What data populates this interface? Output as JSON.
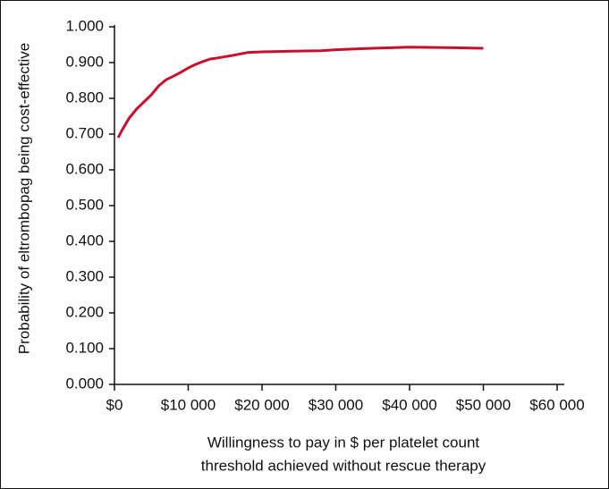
{
  "chart_data": {
    "type": "line",
    "y_label": "Probability of eltrombopag being cost-effective",
    "x_label": [
      "Willingness to pay in $ per platelet count",
      "threshold achieved without rescue therapy"
    ],
    "x": [
      500,
      1000,
      2000,
      3000,
      4000,
      5000,
      6000,
      7000,
      8000,
      9000,
      10000,
      11000,
      12000,
      13000,
      14000,
      16000,
      18000,
      20000,
      24000,
      28000,
      30000,
      35000,
      40000,
      45000,
      50000
    ],
    "series": [
      {
        "name": "eltrombopag",
        "color": "#c8102e",
        "values": [
          0.69,
          0.71,
          0.745,
          0.77,
          0.79,
          0.81,
          0.835,
          0.852,
          0.862,
          0.873,
          0.885,
          0.895,
          0.903,
          0.91,
          0.913,
          0.92,
          0.928,
          0.93,
          0.932,
          0.933,
          0.936,
          0.94,
          0.943,
          0.942,
          0.94
        ]
      }
    ],
    "xlim": [
      0,
      60000
    ],
    "ylim": [
      0,
      1
    ],
    "xticks": [
      {
        "value": 0,
        "label": "$0"
      },
      {
        "value": 10000,
        "label": "$10 000"
      },
      {
        "value": 20000,
        "label": "$20 000"
      },
      {
        "value": 30000,
        "label": "$30 000"
      },
      {
        "value": 40000,
        "label": "$40 000"
      },
      {
        "value": 50000,
        "label": "$50 000"
      },
      {
        "value": 60000,
        "label": "$60 000"
      }
    ],
    "yticks": [
      {
        "value": 0,
        "label": "0.000"
      },
      {
        "value": 0.1,
        "label": "0.100"
      },
      {
        "value": 0.2,
        "label": "0.200"
      },
      {
        "value": 0.3,
        "label": "0.300"
      },
      {
        "value": 0.4,
        "label": "0.400"
      },
      {
        "value": 0.5,
        "label": "0.500"
      },
      {
        "value": 0.6,
        "label": "0.600"
      },
      {
        "value": 0.7,
        "label": "0.700"
      },
      {
        "value": 0.8,
        "label": "0.800"
      },
      {
        "value": 0.9,
        "label": "0.900"
      },
      {
        "value": 1,
        "label": "1.000"
      }
    ]
  }
}
